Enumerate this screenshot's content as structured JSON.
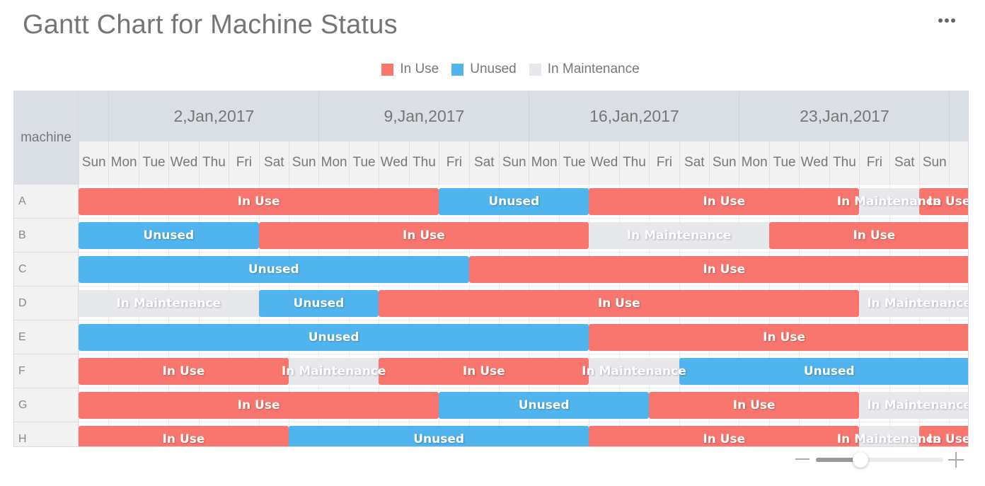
{
  "header": {
    "title": "Gantt Chart for Machine Status",
    "menu_icon": "more-horizontal-icon"
  },
  "legend": [
    {
      "label": "In Use",
      "color": "#f8766d"
    },
    {
      "label": "Unused",
      "color": "#50b4ee"
    },
    {
      "label": "In Maintenance",
      "color": "#e6e8ec"
    }
  ],
  "grid": {
    "corner_label": "machine",
    "weeks": [
      "2,Jan,2017",
      "9,Jan,2017",
      "16,Jan,2017",
      "23,Jan,2017",
      ""
    ],
    "days": [
      "Sun",
      "Mon",
      "Tue",
      "Wed",
      "Thu",
      "Fri",
      "Sat",
      "Sun",
      "Mon",
      "Tue",
      "Wed",
      "Thu",
      "Fri",
      "Sat",
      "Sun",
      "Mon",
      "Tue",
      "Wed",
      "Thu",
      "Fri",
      "Sat",
      "Sun",
      "Mon",
      "Tue",
      "Wed",
      "Thu",
      "Fri",
      "Sat",
      "Sun",
      ""
    ]
  },
  "zoom_slider": {
    "minus_icon": "minus-icon",
    "plus_icon": "plus-icon",
    "position_pct": 35
  },
  "chart_data": {
    "type": "gantt",
    "title": "Gantt Chart for Machine Status",
    "xlabel": "",
    "ylabel": "machine",
    "x_start": "2017-01-01",
    "x_visible_end": "2017-01-30",
    "x_week_ticks": [
      "2,Jan,2017",
      "9,Jan,2017",
      "16,Jan,2017",
      "23,Jan,2017"
    ],
    "legend": [
      "In Use",
      "Unused",
      "In Maintenance"
    ],
    "colors": {
      "In Use": "#f8766d",
      "Unused": "#50b4ee",
      "In Maintenance": "#e6e8ec"
    },
    "rows": [
      {
        "machine": "A",
        "segments": [
          {
            "status": "In Use",
            "start": "2017-01-01",
            "end": "2017-01-13"
          },
          {
            "status": "Unused",
            "start": "2017-01-13",
            "end": "2017-01-18"
          },
          {
            "status": "In Use",
            "start": "2017-01-18",
            "end": "2017-01-27"
          },
          {
            "status": "In Maintenance",
            "start": "2017-01-27",
            "end": "2017-01-29"
          },
          {
            "status": "In Use",
            "start": "2017-01-29",
            "end": "2017-01-30+"
          }
        ]
      },
      {
        "machine": "B",
        "segments": [
          {
            "status": "Unused",
            "start": "2017-01-01",
            "end": "2017-01-07"
          },
          {
            "status": "In Use",
            "start": "2017-01-07",
            "end": "2017-01-18"
          },
          {
            "status": "In Maintenance",
            "start": "2017-01-18",
            "end": "2017-01-24"
          },
          {
            "status": "In Use",
            "start": "2017-01-24",
            "end": "2017-01-30+"
          }
        ]
      },
      {
        "machine": "C",
        "segments": [
          {
            "status": "Unused",
            "start": "2017-01-01",
            "end": "2017-01-14"
          },
          {
            "status": "In Use",
            "start": "2017-01-14",
            "end": "2017-01-30+"
          }
        ]
      },
      {
        "machine": "D",
        "segments": [
          {
            "status": "In Maintenance",
            "start": "2017-01-01",
            "end": "2017-01-07"
          },
          {
            "status": "Unused",
            "start": "2017-01-07",
            "end": "2017-01-11"
          },
          {
            "status": "In Use",
            "start": "2017-01-11",
            "end": "2017-01-27"
          },
          {
            "status": "In Maintenance",
            "start": "2017-01-27",
            "end": "2017-01-30+"
          }
        ]
      },
      {
        "machine": "E",
        "segments": [
          {
            "status": "Unused",
            "start": "2017-01-01",
            "end": "2017-01-18"
          },
          {
            "status": "In Use",
            "start": "2017-01-18",
            "end": "2017-01-30+"
          }
        ]
      },
      {
        "machine": "F",
        "segments": [
          {
            "status": "In Use",
            "start": "2017-01-01",
            "end": "2017-01-08"
          },
          {
            "status": "In Maintenance",
            "start": "2017-01-08",
            "end": "2017-01-11"
          },
          {
            "status": "In Use",
            "start": "2017-01-11",
            "end": "2017-01-18"
          },
          {
            "status": "In Maintenance",
            "start": "2017-01-18",
            "end": "2017-01-21"
          },
          {
            "status": "Unused",
            "start": "2017-01-21",
            "end": "2017-01-30+"
          }
        ]
      },
      {
        "machine": "G",
        "segments": [
          {
            "status": "In Use",
            "start": "2017-01-01",
            "end": "2017-01-13"
          },
          {
            "status": "Unused",
            "start": "2017-01-13",
            "end": "2017-01-20"
          },
          {
            "status": "In Use",
            "start": "2017-01-20",
            "end": "2017-01-27"
          },
          {
            "status": "In Maintenance",
            "start": "2017-01-27",
            "end": "2017-01-30+"
          }
        ]
      },
      {
        "machine": "H",
        "segments": [
          {
            "status": "In Use",
            "start": "2017-01-01",
            "end": "2017-01-08"
          },
          {
            "status": "Unused",
            "start": "2017-01-08",
            "end": "2017-01-18"
          },
          {
            "status": "In Use",
            "start": "2017-01-18",
            "end": "2017-01-27"
          },
          {
            "status": "In Maintenance",
            "start": "2017-01-27",
            "end": "2017-01-29"
          },
          {
            "status": "In Use",
            "start": "2017-01-29",
            "end": "2017-01-30+"
          }
        ]
      }
    ],
    "bars_by_day_index": [
      {
        "machine": "A",
        "bars": [
          [
            0,
            12,
            "In Use"
          ],
          [
            12,
            17,
            "Unused"
          ],
          [
            17,
            26,
            "In Use"
          ],
          [
            26,
            28,
            "In Maintenance"
          ],
          [
            28,
            30,
            "In Use"
          ]
        ]
      },
      {
        "machine": "B",
        "bars": [
          [
            0,
            6,
            "Unused"
          ],
          [
            6,
            17,
            "In Use"
          ],
          [
            17,
            23,
            "In Maintenance"
          ],
          [
            23,
            30,
            "In Use"
          ]
        ]
      },
      {
        "machine": "C",
        "bars": [
          [
            0,
            13,
            "Unused"
          ],
          [
            13,
            30,
            "In Use"
          ]
        ]
      },
      {
        "machine": "D",
        "bars": [
          [
            0,
            6,
            "In Maintenance"
          ],
          [
            6,
            10,
            "Unused"
          ],
          [
            10,
            26,
            "In Use"
          ],
          [
            26,
            30,
            "In Maintenance"
          ]
        ]
      },
      {
        "machine": "E",
        "bars": [
          [
            0,
            17,
            "Unused"
          ],
          [
            17,
            30,
            "In Use"
          ]
        ]
      },
      {
        "machine": "F",
        "bars": [
          [
            0,
            7,
            "In Use"
          ],
          [
            7,
            10,
            "In Maintenance"
          ],
          [
            10,
            17,
            "In Use"
          ],
          [
            17,
            20,
            "In Maintenance"
          ],
          [
            20,
            30,
            "Unused"
          ]
        ]
      },
      {
        "machine": "G",
        "bars": [
          [
            0,
            12,
            "In Use"
          ],
          [
            12,
            19,
            "Unused"
          ],
          [
            19,
            26,
            "In Use"
          ],
          [
            26,
            30,
            "In Maintenance"
          ]
        ]
      },
      {
        "machine": "H",
        "bars": [
          [
            0,
            7,
            "In Use"
          ],
          [
            7,
            17,
            "Unused"
          ],
          [
            17,
            26,
            "In Use"
          ],
          [
            26,
            28,
            "In Maintenance"
          ],
          [
            28,
            30,
            "In Use"
          ]
        ]
      }
    ]
  }
}
